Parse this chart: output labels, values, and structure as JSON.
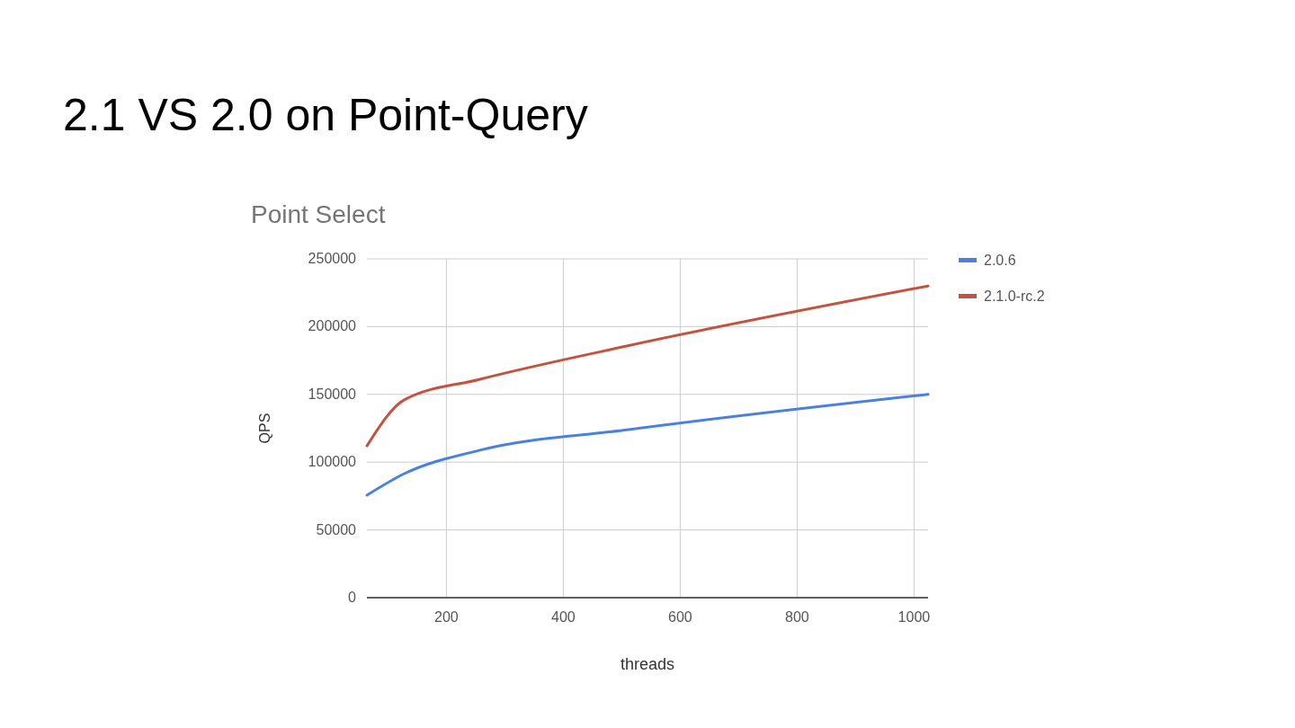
{
  "chart_data": {
    "type": "line",
    "title": "2.1 VS 2.0 on Point-Query",
    "subtitle": "Point Select",
    "xlabel": "threads",
    "ylabel": "QPS",
    "x": [
      64,
      128,
      256,
      512,
      1024
    ],
    "series": [
      {
        "name": "2.0.6",
        "color": "#4a80e0",
        "values": [
          75600,
          91500,
          108700,
          124000,
          150000
        ]
      },
      {
        "name": "2.1.0-rc.2",
        "color": "#c5523f",
        "values": [
          112000,
          146000,
          161000,
          186000,
          230000
        ]
      }
    ],
    "xlim": [
      64,
      1024
    ],
    "xticks": [
      200,
      400,
      600,
      800,
      1000
    ],
    "ylim": [
      0,
      250000
    ],
    "yticks": [
      0,
      50000,
      100000,
      150000,
      200000,
      250000
    ],
    "grid": true,
    "legend": "right",
    "marker": "none",
    "line_style": "solid"
  }
}
